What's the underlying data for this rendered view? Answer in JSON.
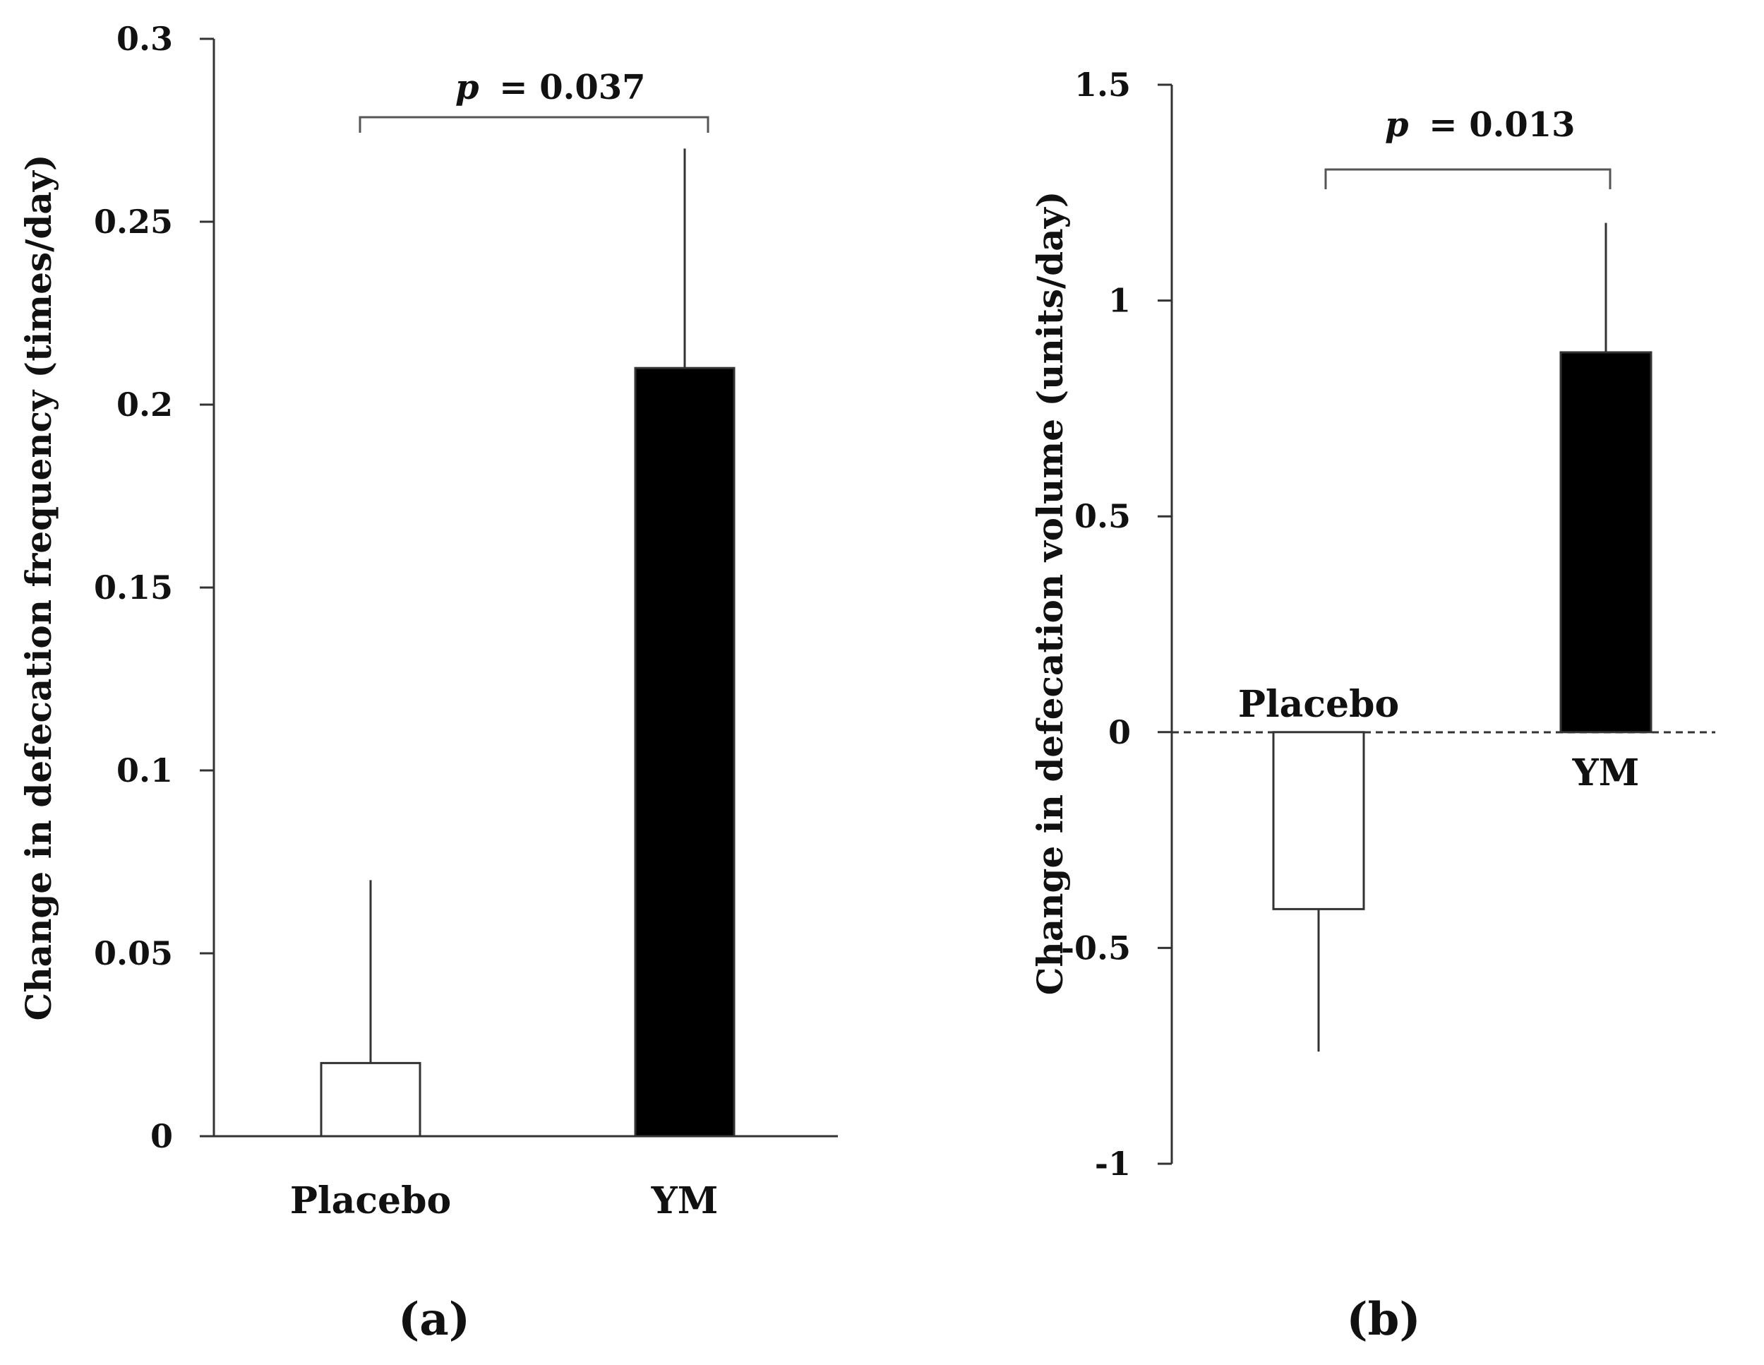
{
  "chart_data": [
    {
      "type": "bar",
      "panel_label": "(a)",
      "categories": [
        "Placebo",
        "YM"
      ],
      "values": [
        0.02,
        0.21
      ],
      "error_upper": [
        0.07,
        0.27
      ],
      "bar_colors": [
        "#ffffff",
        "#000000"
      ],
      "ylabel": "Change in defecation frequency (times/day)",
      "ylim": [
        0,
        0.3
      ],
      "yticks": [
        0,
        0.05,
        0.1,
        0.15,
        0.2,
        0.25,
        0.3
      ],
      "ytick_labels": [
        "0",
        "0.05",
        "0.1",
        "0.15",
        "0.2",
        "0.25",
        "0.3"
      ],
      "significance": {
        "p_symbol": "p",
        "p_text": "= 0.037",
        "between": [
          "Placebo",
          "YM"
        ]
      },
      "grid": false
    },
    {
      "type": "bar",
      "panel_label": "(b)",
      "categories": [
        "Placebo",
        "YM"
      ],
      "values": [
        -0.41,
        0.88
      ],
      "error_ends": [
        -0.74,
        1.18
      ],
      "bar_colors": [
        "#ffffff",
        "#000000"
      ],
      "ylabel": "Change in defecation volume (units/day)",
      "ylim": [
        -1,
        1.5
      ],
      "yticks": [
        -1,
        -0.5,
        0,
        0.5,
        1,
        1.5
      ],
      "ytick_labels": [
        "-1",
        "-0.5",
        "0",
        "0.5",
        "1",
        "1.5"
      ],
      "zero_line": "dashed",
      "significance": {
        "p_symbol": "p",
        "p_text": "= 0.013",
        "between": [
          "Placebo",
          "YM"
        ]
      },
      "grid": false
    }
  ]
}
